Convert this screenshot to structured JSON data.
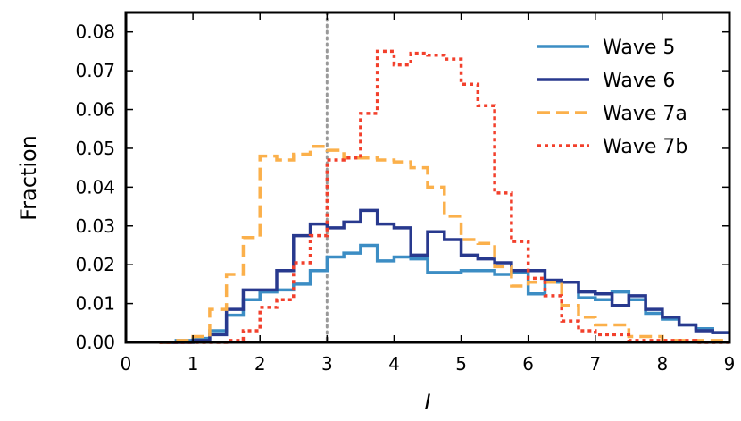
{
  "chart_data": {
    "type": "line",
    "step": true,
    "xlabel": "I",
    "ylabel": "Fraction",
    "xlim": [
      0,
      9
    ],
    "ylim": [
      0,
      0.085
    ],
    "x_ticks": [
      "0",
      "1",
      "2",
      "3",
      "4",
      "5",
      "6",
      "7",
      "8",
      "9"
    ],
    "y_ticks": [
      "0.00",
      "0.01",
      "0.02",
      "0.03",
      "0.04",
      "0.05",
      "0.06",
      "0.07",
      "0.08"
    ],
    "vline": {
      "x": 3.0,
      "style": "dotted",
      "color": "#999999"
    },
    "legend_position": "top-right",
    "bin_edges": [
      0.5,
      0.75,
      1.0,
      1.25,
      1.5,
      1.75,
      2.0,
      2.25,
      2.5,
      2.75,
      3.0,
      3.25,
      3.5,
      3.75,
      4.0,
      4.25,
      4.5,
      4.75,
      5.0,
      5.25,
      5.5,
      5.75,
      6.0,
      6.25,
      6.5,
      6.75,
      7.0,
      7.25,
      7.5,
      7.75,
      8.0,
      8.25,
      8.5,
      8.75,
      9.0
    ],
    "series": [
      {
        "name": "Wave 5",
        "color": "#3c8dc4",
        "dash": "solid",
        "width": 3.5,
        "values": [
          0.0,
          0.0005,
          0.001,
          0.003,
          0.007,
          0.011,
          0.013,
          0.0135,
          0.015,
          0.0185,
          0.022,
          0.023,
          0.025,
          0.021,
          0.022,
          0.0215,
          0.018,
          0.018,
          0.0185,
          0.0185,
          0.0175,
          0.018,
          0.0125,
          0.0155,
          0.0155,
          0.0115,
          0.011,
          0.013,
          0.011,
          0.0075,
          0.006,
          0.0045,
          0.0035,
          0.0025
        ]
      },
      {
        "name": "Wave 6",
        "color": "#28398e",
        "dash": "solid",
        "width": 3.5,
        "values": [
          0.0,
          0.0,
          0.0005,
          0.002,
          0.0085,
          0.0135,
          0.0135,
          0.0185,
          0.0275,
          0.0305,
          0.0295,
          0.031,
          0.034,
          0.0305,
          0.0295,
          0.0225,
          0.0285,
          0.0265,
          0.0225,
          0.0215,
          0.0205,
          0.0185,
          0.0185,
          0.016,
          0.0155,
          0.013,
          0.0125,
          0.0095,
          0.012,
          0.0085,
          0.0065,
          0.0045,
          0.003,
          0.0025
        ]
      },
      {
        "name": "Wave 7a",
        "color": "#fbb04b",
        "dash": "dashed",
        "width": 3.5,
        "values": [
          0.0,
          0.0005,
          0.0015,
          0.0085,
          0.0175,
          0.027,
          0.048,
          0.047,
          0.0485,
          0.0505,
          0.0495,
          0.0475,
          0.0475,
          0.047,
          0.0465,
          0.045,
          0.04,
          0.0325,
          0.0265,
          0.0255,
          0.0195,
          0.0145,
          0.0155,
          0.0155,
          0.0095,
          0.0065,
          0.0045,
          0.0045,
          0.0015,
          0.0015,
          0.0005,
          0.0005,
          0.0005,
          0.0005
        ]
      },
      {
        "name": "Wave 7b",
        "color": "#f2402c",
        "dash": "dotted",
        "width": 3.5,
        "values": [
          0.0,
          0.0,
          0.0,
          0.0,
          0.0005,
          0.003,
          0.009,
          0.011,
          0.0205,
          0.0275,
          0.047,
          0.0475,
          0.059,
          0.075,
          0.0715,
          0.0745,
          0.074,
          0.073,
          0.0665,
          0.061,
          0.0385,
          0.026,
          0.0165,
          0.012,
          0.0055,
          0.003,
          0.002,
          0.002,
          0.0005,
          0.0005,
          0.0005,
          0.0005,
          0.0,
          0.0
        ]
      }
    ]
  }
}
